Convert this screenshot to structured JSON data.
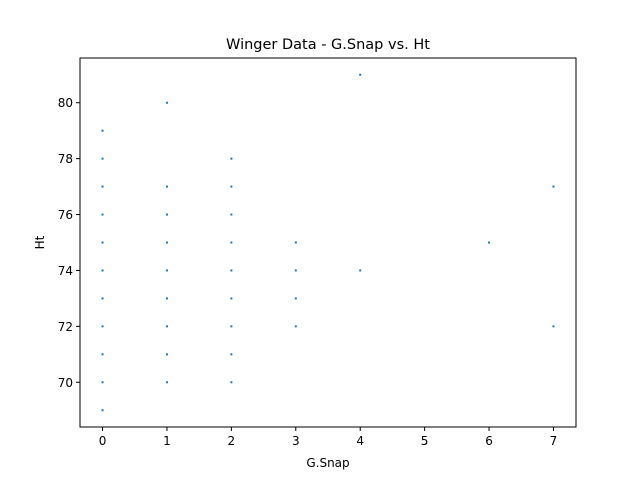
{
  "chart_data": {
    "type": "scatter",
    "title": "Winger Data - G.Snap vs. Ht",
    "xlabel": "G.Snap",
    "ylabel": "Ht",
    "xlim": [
      -0.35,
      7.35
    ],
    "ylim": [
      68.4,
      81.6
    ],
    "xticks": [
      0,
      1,
      2,
      3,
      4,
      5,
      6,
      7
    ],
    "yticks": [
      70,
      72,
      74,
      76,
      78,
      80
    ],
    "grid": false,
    "marker_color": "#1f77b4",
    "points": [
      {
        "x": 0,
        "y": 69
      },
      {
        "x": 0,
        "y": 70
      },
      {
        "x": 0,
        "y": 71
      },
      {
        "x": 0,
        "y": 72
      },
      {
        "x": 0,
        "y": 73
      },
      {
        "x": 0,
        "y": 74
      },
      {
        "x": 0,
        "y": 75
      },
      {
        "x": 0,
        "y": 76
      },
      {
        "x": 0,
        "y": 77
      },
      {
        "x": 0,
        "y": 78
      },
      {
        "x": 0,
        "y": 79
      },
      {
        "x": 1,
        "y": 70
      },
      {
        "x": 1,
        "y": 71
      },
      {
        "x": 1,
        "y": 72
      },
      {
        "x": 1,
        "y": 73
      },
      {
        "x": 1,
        "y": 74
      },
      {
        "x": 1,
        "y": 75
      },
      {
        "x": 1,
        "y": 76
      },
      {
        "x": 1,
        "y": 77
      },
      {
        "x": 1,
        "y": 80
      },
      {
        "x": 2,
        "y": 70
      },
      {
        "x": 2,
        "y": 71
      },
      {
        "x": 2,
        "y": 72
      },
      {
        "x": 2,
        "y": 73
      },
      {
        "x": 2,
        "y": 74
      },
      {
        "x": 2,
        "y": 75
      },
      {
        "x": 2,
        "y": 76
      },
      {
        "x": 2,
        "y": 77
      },
      {
        "x": 2,
        "y": 78
      },
      {
        "x": 3,
        "y": 72
      },
      {
        "x": 3,
        "y": 73
      },
      {
        "x": 3,
        "y": 74
      },
      {
        "x": 3,
        "y": 75
      },
      {
        "x": 4,
        "y": 74
      },
      {
        "x": 4,
        "y": 81
      },
      {
        "x": 6,
        "y": 75
      },
      {
        "x": 7,
        "y": 72
      },
      {
        "x": 7,
        "y": 77
      }
    ]
  }
}
